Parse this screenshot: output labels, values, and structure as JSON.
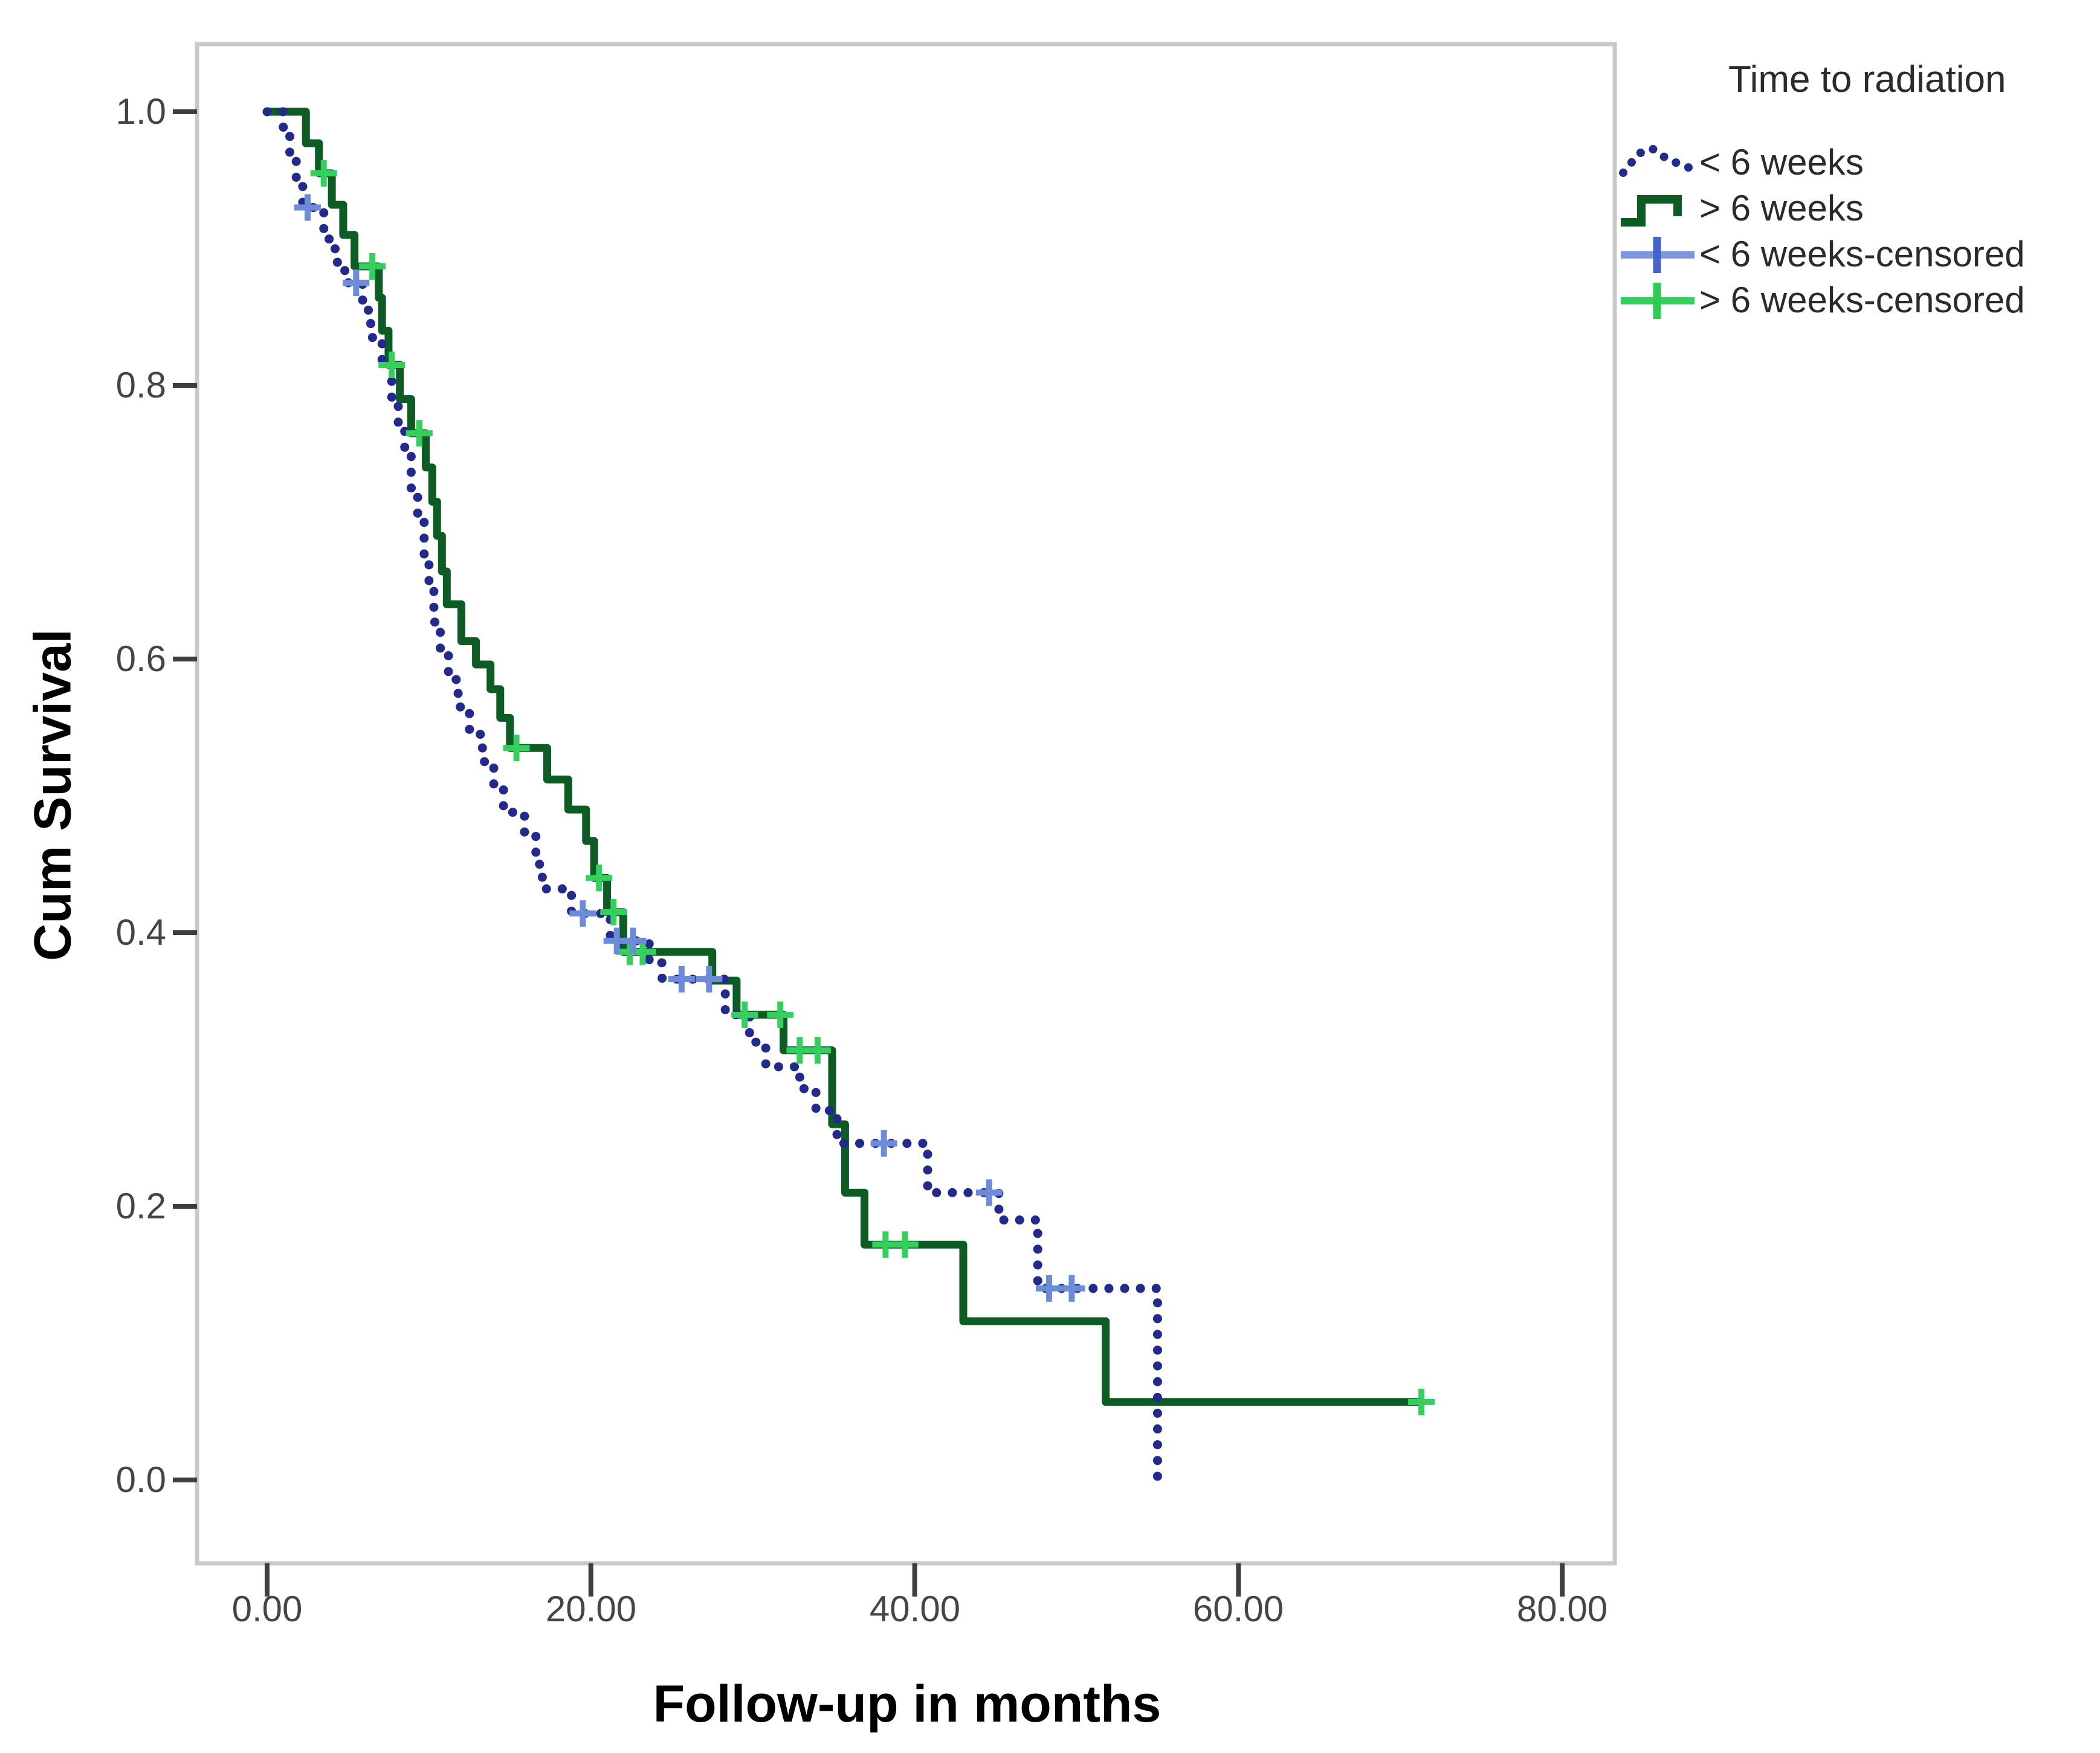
{
  "chart_data": {
    "type": "line",
    "chart_kind": "kaplan-meier-step",
    "title": "",
    "xlabel": "Follow-up in months",
    "ylabel": "Cum Survival",
    "xlim": [
      -4.3,
      83.5
    ],
    "ylim": [
      -0.06,
      1.05
    ],
    "grid": false,
    "legend_position": "outside-top-right",
    "x_ticks": {
      "values": [
        0,
        20,
        40,
        60,
        80
      ],
      "labels": [
        "0.00",
        "20.00",
        "40.00",
        "60.00",
        "80.00"
      ]
    },
    "y_ticks": {
      "values": [
        1.0,
        0.8,
        0.6,
        0.4,
        0.2,
        0.0
      ],
      "labels": [
        "1.0",
        "0.8",
        "0.6",
        "0.4",
        "0.2",
        "0.0"
      ]
    },
    "colors": {
      "lt6_line": "#232a8d",
      "gt6_line": "#0c5c24",
      "lt6_censor": "#6c8bd9",
      "gt6_censor": "#35cf5e",
      "frame": "#c9c9c9",
      "tick": "#3f3f3f",
      "tick_label": "#454545",
      "axis_title": "#000000",
      "legend_text": "#2b2b2b"
    },
    "legend": {
      "title": "Time to radiation",
      "items": [
        {
          "label": "< 6 weeks",
          "symbol": "dotted-line",
          "color": "#232a8d"
        },
        {
          "label": "> 6 weeks",
          "symbol": "step-line",
          "color": "#0c5c24"
        },
        {
          "label": "< 6 weeks-censored",
          "symbol": "plus",
          "color": "#6c8bd9"
        },
        {
          "label": "> 6 weeks-censored",
          "symbol": "plus",
          "color": "#35cf5e"
        }
      ]
    },
    "series": [
      {
        "name": "< 6 weeks",
        "style": "dotted",
        "color": "#232a8d",
        "censor_color": "#6c8bd9",
        "end_x": 55.0,
        "steps": [
          [
            0,
            1.0
          ],
          [
            1.0,
            0.982
          ],
          [
            1.4,
            0.964
          ],
          [
            1.8,
            0.947
          ],
          [
            2.2,
            0.93
          ],
          [
            3.5,
            0.907
          ],
          [
            4.2,
            0.89
          ],
          [
            4.8,
            0.875
          ],
          [
            5.9,
            0.855
          ],
          [
            6.4,
            0.835
          ],
          [
            7.1,
            0.815
          ],
          [
            7.7,
            0.79
          ],
          [
            8.1,
            0.77
          ],
          [
            8.5,
            0.75
          ],
          [
            8.9,
            0.725
          ],
          [
            9.3,
            0.7
          ],
          [
            9.7,
            0.675
          ],
          [
            10.0,
            0.65
          ],
          [
            10.3,
            0.627
          ],
          [
            10.7,
            0.605
          ],
          [
            11.2,
            0.585
          ],
          [
            11.8,
            0.565
          ],
          [
            12.5,
            0.545
          ],
          [
            13.3,
            0.525
          ],
          [
            14.0,
            0.508
          ],
          [
            14.6,
            0.488
          ],
          [
            15.9,
            0.472
          ],
          [
            16.6,
            0.45
          ],
          [
            17.0,
            0.432
          ],
          [
            18.8,
            0.414
          ],
          [
            21.2,
            0.394
          ],
          [
            23.6,
            0.378
          ],
          [
            24.4,
            0.366
          ],
          [
            28.3,
            0.34
          ],
          [
            29.8,
            0.32
          ],
          [
            30.8,
            0.302
          ],
          [
            32.9,
            0.286
          ],
          [
            33.9,
            0.27
          ],
          [
            35.2,
            0.246
          ],
          [
            40.8,
            0.21
          ],
          [
            45.2,
            0.19
          ],
          [
            47.6,
            0.14
          ],
          [
            55.0,
            0.0
          ]
        ],
        "censored": [
          [
            2.5,
            0.93
          ],
          [
            5.5,
            0.875
          ],
          [
            19.5,
            0.414
          ],
          [
            21.6,
            0.394
          ],
          [
            22.6,
            0.394
          ],
          [
            25.6,
            0.366
          ],
          [
            27.3,
            0.366
          ],
          [
            38.1,
            0.246
          ],
          [
            44.6,
            0.21
          ],
          [
            48.3,
            0.14
          ],
          [
            49.7,
            0.14
          ]
        ]
      },
      {
        "name": "> 6 weeks",
        "style": "solid",
        "color": "#0c5c24",
        "censor_color": "#35cf5e",
        "end_x": 71.3,
        "steps": [
          [
            0,
            1.0
          ],
          [
            2.4,
            0.977
          ],
          [
            3.2,
            0.955
          ],
          [
            4.0,
            0.932
          ],
          [
            4.7,
            0.91
          ],
          [
            5.4,
            0.887
          ],
          [
            6.9,
            0.864
          ],
          [
            7.1,
            0.84
          ],
          [
            7.5,
            0.815
          ],
          [
            8.2,
            0.79
          ],
          [
            8.9,
            0.765
          ],
          [
            9.8,
            0.74
          ],
          [
            10.2,
            0.715
          ],
          [
            10.5,
            0.69
          ],
          [
            10.8,
            0.664
          ],
          [
            11.1,
            0.64
          ],
          [
            12.0,
            0.613
          ],
          [
            12.9,
            0.596
          ],
          [
            13.8,
            0.578
          ],
          [
            14.4,
            0.557
          ],
          [
            15.0,
            0.535
          ],
          [
            17.3,
            0.512
          ],
          [
            18.6,
            0.49
          ],
          [
            19.7,
            0.467
          ],
          [
            20.2,
            0.44
          ],
          [
            21.0,
            0.415
          ],
          [
            22.0,
            0.386
          ],
          [
            27.5,
            0.365
          ],
          [
            29.0,
            0.34
          ],
          [
            31.9,
            0.314
          ],
          [
            34.9,
            0.26
          ],
          [
            35.7,
            0.21
          ],
          [
            36.9,
            0.172
          ],
          [
            43.0,
            0.116
          ],
          [
            51.8,
            0.057
          ]
        ],
        "censored": [
          [
            3.5,
            0.955
          ],
          [
            6.5,
            0.887
          ],
          [
            7.7,
            0.815
          ],
          [
            9.4,
            0.765
          ],
          [
            15.4,
            0.535
          ],
          [
            20.5,
            0.44
          ],
          [
            21.4,
            0.415
          ],
          [
            22.4,
            0.386
          ],
          [
            23.2,
            0.386
          ],
          [
            29.5,
            0.34
          ],
          [
            31.7,
            0.34
          ],
          [
            32.9,
            0.314
          ],
          [
            34.0,
            0.314
          ],
          [
            38.2,
            0.172
          ],
          [
            39.4,
            0.172
          ],
          [
            71.3,
            0.057
          ]
        ]
      }
    ]
  }
}
